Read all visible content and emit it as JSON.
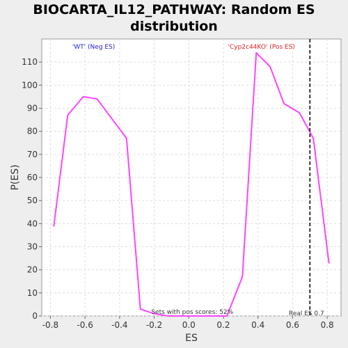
{
  "chart_data": {
    "type": "line",
    "title": "BIOCARTA_IL12_PATHWAY: Random ES\ndistribution",
    "xlabel": "ES",
    "ylabel": "P(ES)",
    "xlim": [
      -0.85,
      0.88
    ],
    "ylim": [
      0,
      120
    ],
    "x_ticks": [
      -0.8,
      -0.6,
      -0.4,
      -0.2,
      0.0,
      0.2,
      0.4,
      0.6,
      0.8
    ],
    "x_tick_labels": [
      "-0.8",
      "-0.6",
      "-0.4",
      "-0.2",
      "0.0",
      "0.2",
      "0.4",
      "0.6",
      "0.8"
    ],
    "y_ticks": [
      0,
      10,
      20,
      30,
      40,
      50,
      60,
      70,
      80,
      90,
      100,
      110
    ],
    "y_tick_labels": [
      "0",
      "10",
      "20",
      "30",
      "40",
      "50",
      "60",
      "70",
      "80",
      "90",
      "100",
      "110"
    ],
    "grid": true,
    "series": [
      {
        "color": "#ff44ff",
        "x": [
          -0.78,
          -0.7,
          -0.61,
          -0.53,
          -0.45,
          -0.36,
          -0.28,
          -0.2,
          -0.12,
          -0.04,
          0.04,
          0.12,
          0.22,
          0.31,
          0.39,
          0.47,
          0.55,
          0.64,
          0.72,
          0.81
        ],
        "y": [
          39,
          87,
          95,
          94,
          86,
          77,
          3,
          1,
          0,
          0,
          0,
          0,
          0,
          17,
          114,
          108,
          92,
          88,
          77,
          23
        ]
      }
    ],
    "real_es": 0.7,
    "real_es_label": "Real ES 0.7",
    "neg_label": "'WT' (Neg ES)",
    "neg_color": "#2222cc",
    "pos_label": "'Cyp2c44KO' (Pos ES)",
    "pos_color": "#dd2222",
    "pos_scores_label": "Sets with pos scores: 52%"
  }
}
